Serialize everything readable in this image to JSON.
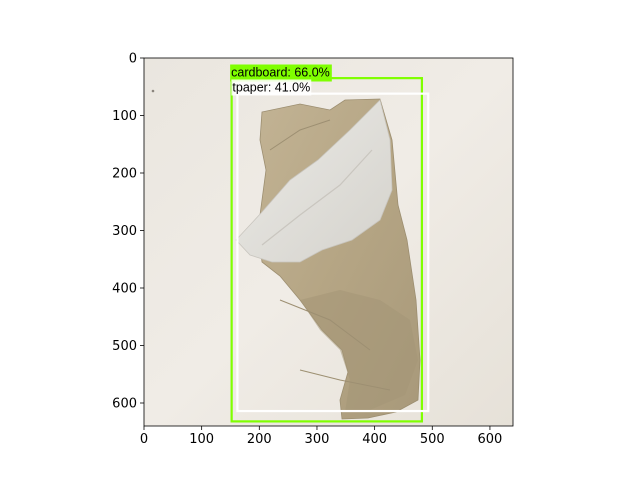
{
  "image": {
    "description_colors": {
      "background": "#eeeae3",
      "towel": "#b8a888",
      "tissue": "#e4e2dd"
    }
  },
  "axes": {
    "x_ticks": [
      "0",
      "100",
      "200",
      "300",
      "400",
      "500",
      "600"
    ],
    "y_ticks": [
      "0",
      "100",
      "200",
      "300",
      "400",
      "500",
      "600"
    ],
    "x_tick_values": [
      0,
      100,
      200,
      300,
      400,
      500,
      600
    ],
    "y_tick_values": [
      0,
      100,
      200,
      300,
      400,
      500,
      600
    ],
    "xlim": [
      0,
      640
    ],
    "ylim": [
      640,
      0
    ]
  },
  "detections": [
    {
      "label": "cardboard: 66.0%",
      "class": "cardboard",
      "score": 66.0,
      "color": "#7fff00",
      "box": {
        "x0": 152,
        "y0": 35,
        "x1": 482,
        "y1": 632
      }
    },
    {
      "label": "tpaper: 41.0%",
      "class": "tpaper",
      "score": 41.0,
      "color": "#ffffff",
      "box": {
        "x0": 162,
        "y0": 62,
        "x1": 493,
        "y1": 614
      }
    }
  ]
}
